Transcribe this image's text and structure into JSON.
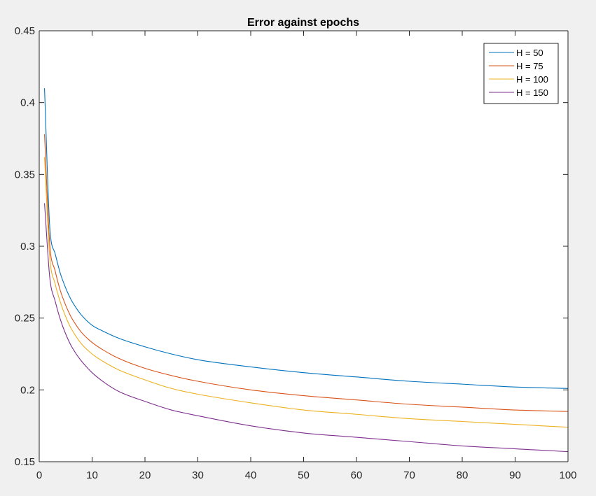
{
  "chart_data": {
    "type": "line",
    "title": "Error against epochs",
    "xlabel": "",
    "ylabel": "",
    "xlim": [
      0,
      100
    ],
    "ylim": [
      0.15,
      0.45
    ],
    "x_ticks": [
      0,
      10,
      20,
      30,
      40,
      50,
      60,
      70,
      80,
      90,
      100
    ],
    "y_ticks": [
      0.15,
      0.2,
      0.25,
      0.3,
      0.35,
      0.4,
      0.45
    ],
    "x_tick_labels": [
      "0",
      "10",
      "20",
      "30",
      "40",
      "50",
      "60",
      "70",
      "80",
      "90",
      "100"
    ],
    "y_tick_labels": [
      "0.15",
      "0.2",
      "0.25",
      "0.3",
      "0.35",
      "0.4",
      "0.45"
    ],
    "grid": false,
    "legend_position": "top-right",
    "x": [
      1,
      2,
      3,
      4,
      5,
      6,
      7,
      8,
      10,
      12,
      15,
      20,
      25,
      30,
      40,
      50,
      60,
      70,
      80,
      90,
      100
    ],
    "series": [
      {
        "name": "H = 50",
        "color": "#0072bd",
        "values": [
          0.41,
          0.313,
          0.295,
          0.281,
          0.271,
          0.263,
          0.257,
          0.252,
          0.245,
          0.241,
          0.236,
          0.23,
          0.225,
          0.221,
          0.216,
          0.212,
          0.209,
          0.206,
          0.204,
          0.202,
          0.201
        ]
      },
      {
        "name": "H = 75",
        "color": "#d95319",
        "values": [
          0.378,
          0.301,
          0.283,
          0.269,
          0.259,
          0.251,
          0.245,
          0.24,
          0.233,
          0.228,
          0.222,
          0.215,
          0.21,
          0.206,
          0.2,
          0.196,
          0.193,
          0.19,
          0.188,
          0.186,
          0.185
        ]
      },
      {
        "name": "H = 100",
        "color": "#edb120",
        "values": [
          0.362,
          0.292,
          0.274,
          0.261,
          0.251,
          0.243,
          0.237,
          0.232,
          0.225,
          0.22,
          0.214,
          0.207,
          0.201,
          0.197,
          0.191,
          0.186,
          0.183,
          0.18,
          0.178,
          0.176,
          0.174
        ]
      },
      {
        "name": "H = 150",
        "color": "#7e2f8e",
        "values": [
          0.33,
          0.278,
          0.262,
          0.249,
          0.239,
          0.231,
          0.225,
          0.22,
          0.212,
          0.206,
          0.199,
          0.192,
          0.186,
          0.182,
          0.175,
          0.17,
          0.167,
          0.164,
          0.161,
          0.159,
          0.157
        ]
      }
    ],
    "colors": {
      "figure_background": "#f0f0f0",
      "axes_background": "#ffffff",
      "axis_color": "#262626"
    }
  }
}
